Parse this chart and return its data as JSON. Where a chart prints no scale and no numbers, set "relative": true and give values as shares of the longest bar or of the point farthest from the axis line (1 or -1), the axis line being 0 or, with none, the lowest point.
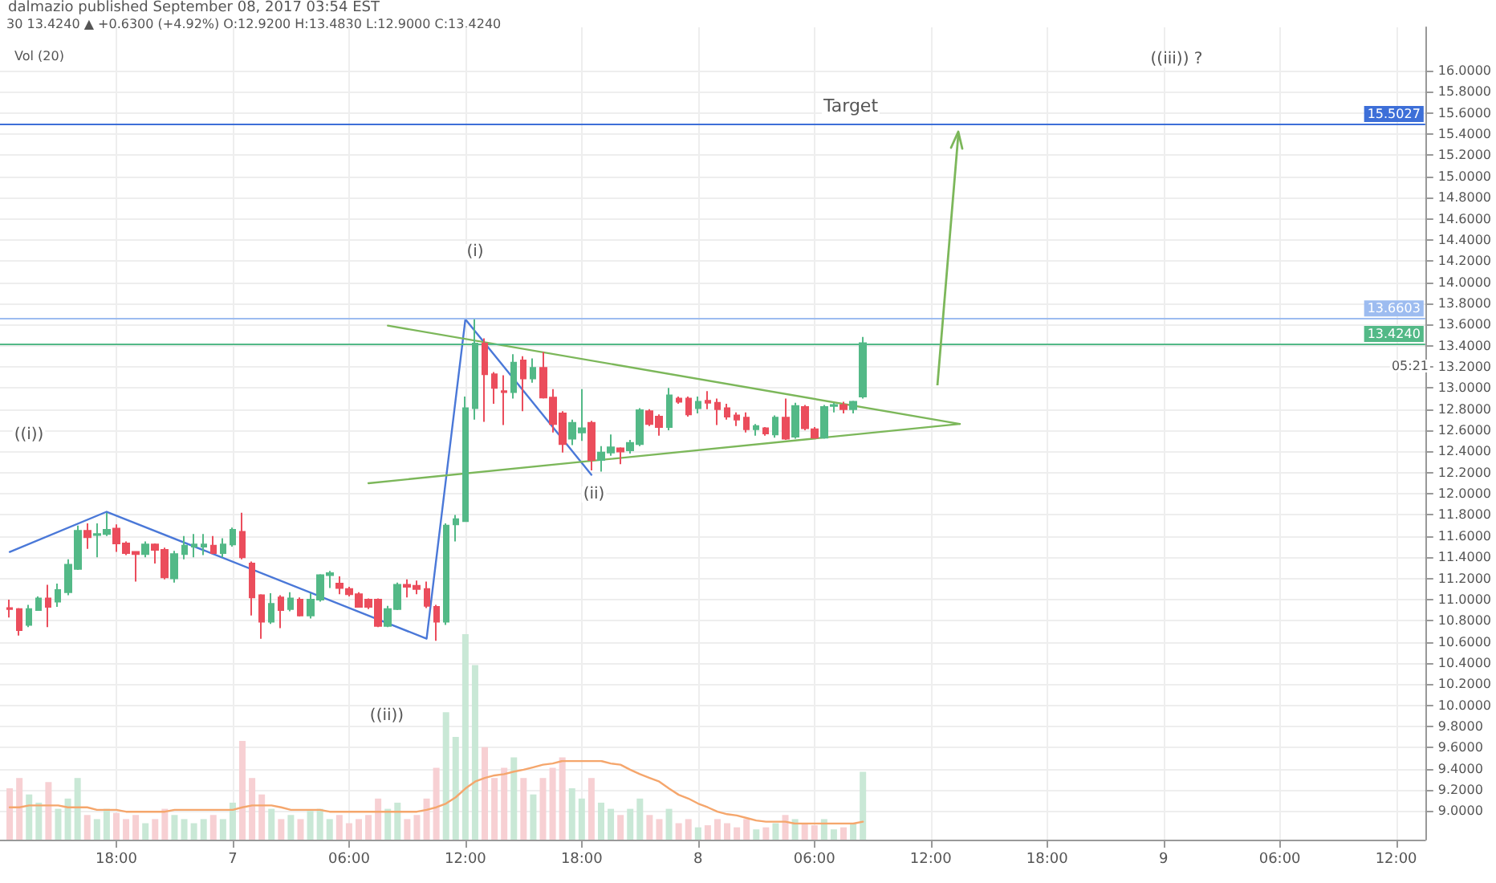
{
  "chart_data": [
    {
      "type": "candlestick",
      "subtitle": "30 13.4240 ▲ +0.6300 (+4.92%) O:12.9200 H:13.4830 L:12.9000 C:13.4240",
      "annotations": [
        "dalmazio published September 08, 2017 03:54 EST",
        "(i)",
        "((i))",
        "(ii)",
        "((ii))",
        "Target",
        "((iii)) ?",
        "05:21"
      ],
      "x": [
        "2017-09-06T12:30",
        "2017-09-06T13:00",
        "2017-09-06T13:30",
        "2017-09-06T14:00",
        "2017-09-06T14:30",
        "2017-09-06T15:00",
        "2017-09-06T15:30",
        "2017-09-06T16:00",
        "2017-09-06T16:30",
        "2017-09-06T17:00",
        "2017-09-06T17:30",
        "2017-09-06T18:00",
        "2017-09-06T18:30",
        "2017-09-06T19:00",
        "2017-09-06T19:30",
        "2017-09-06T20:00",
        "2017-09-06T20:30",
        "2017-09-06T21:00",
        "2017-09-06T21:30",
        "2017-09-06T22:00",
        "2017-09-06T22:30",
        "2017-09-06T23:00",
        "2017-09-06T23:30",
        "2017-09-07T00:00",
        "2017-09-07T00:30",
        "2017-09-07T01:00",
        "2017-09-07T01:30",
        "2017-09-07T02:00",
        "2017-09-07T02:30",
        "2017-09-07T03:00",
        "2017-09-07T03:30",
        "2017-09-07T04:00",
        "2017-09-07T04:30",
        "2017-09-07T05:00",
        "2017-09-07T05:30",
        "2017-09-07T06:00",
        "2017-09-07T06:30",
        "2017-09-07T07:00",
        "2017-09-07T07:30",
        "2017-09-07T08:00",
        "2017-09-07T08:30",
        "2017-09-07T09:00",
        "2017-09-07T09:30",
        "2017-09-07T10:00",
        "2017-09-07T10:30",
        "2017-09-07T11:00",
        "2017-09-07T11:30",
        "2017-09-07T12:00",
        "2017-09-07T12:30",
        "2017-09-07T13:00",
        "2017-09-07T13:30",
        "2017-09-07T14:00",
        "2017-09-07T14:30",
        "2017-09-07T15:00",
        "2017-09-07T15:30",
        "2017-09-07T16:00",
        "2017-09-07T16:30",
        "2017-09-07T17:00",
        "2017-09-07T17:30",
        "2017-09-07T18:00",
        "2017-09-07T18:30",
        "2017-09-07T19:00",
        "2017-09-07T19:30",
        "2017-09-07T20:00",
        "2017-09-07T20:30",
        "2017-09-07T21:00",
        "2017-09-07T21:30",
        "2017-09-07T22:00",
        "2017-09-07T22:30",
        "2017-09-07T23:00",
        "2017-09-07T23:30",
        "2017-09-08T00:00",
        "2017-09-08T00:30",
        "2017-09-08T01:00",
        "2017-09-08T01:30",
        "2017-09-08T02:00",
        "2017-09-08T02:30",
        "2017-09-08T03:00",
        "2017-09-08T03:30",
        "2017-09-08T04:00",
        "2017-09-08T04:30",
        "2017-09-08T05:00",
        "2017-09-08T05:30",
        "2017-09-08T06:00",
        "2017-09-08T06:30",
        "2017-09-08T07:00",
        "2017-09-08T07:30",
        "2017-09-08T08:00",
        "2017-09-08T08:30"
      ],
      "ohlc": [
        [
          10.92,
          11.0,
          10.83,
          10.91
        ],
        [
          10.91,
          10.92,
          10.66,
          10.71
        ],
        [
          10.76,
          10.95,
          10.74,
          10.91
        ],
        [
          10.9,
          11.03,
          10.9,
          11.01
        ],
        [
          11.01,
          11.14,
          10.74,
          10.93
        ],
        [
          10.98,
          11.15,
          10.93,
          11.09
        ],
        [
          11.07,
          11.38,
          11.04,
          11.33
        ],
        [
          11.29,
          11.7,
          11.28,
          11.65
        ],
        [
          11.65,
          11.72,
          11.48,
          11.59
        ],
        [
          11.61,
          11.72,
          11.4,
          11.62
        ],
        [
          11.62,
          11.82,
          11.6,
          11.66
        ],
        [
          11.67,
          11.71,
          11.45,
          11.53
        ],
        [
          11.53,
          11.55,
          11.42,
          11.44
        ],
        [
          11.45,
          11.45,
          11.17,
          11.43
        ],
        [
          11.43,
          11.55,
          11.4,
          11.52
        ],
        [
          11.52,
          11.53,
          11.34,
          11.47
        ],
        [
          11.47,
          11.49,
          11.19,
          11.21
        ],
        [
          11.2,
          11.46,
          11.16,
          11.43
        ],
        [
          11.43,
          11.6,
          11.38,
          11.51
        ],
        [
          11.5,
          11.62,
          11.4,
          11.52
        ],
        [
          11.5,
          11.62,
          11.42,
          11.52
        ],
        [
          11.51,
          11.6,
          11.43,
          11.44
        ],
        [
          11.44,
          11.58,
          11.4,
          11.52
        ],
        [
          11.52,
          11.68,
          11.5,
          11.66
        ],
        [
          11.64,
          11.82,
          11.38,
          11.4
        ],
        [
          11.34,
          11.36,
          10.85,
          11.02
        ],
        [
          11.04,
          11.05,
          10.63,
          10.79
        ],
        [
          10.79,
          11.06,
          10.77,
          10.96
        ],
        [
          11.02,
          11.04,
          10.73,
          10.9
        ],
        [
          10.91,
          11.07,
          10.89,
          11.01
        ],
        [
          11.0,
          11.02,
          10.84,
          10.85
        ],
        [
          10.85,
          11.06,
          10.82,
          11.0
        ],
        [
          11.0,
          11.24,
          10.98,
          11.23
        ],
        [
          11.23,
          11.27,
          11.11,
          11.25
        ],
        [
          11.15,
          11.22,
          11.05,
          11.11
        ],
        [
          11.1,
          11.12,
          11.03,
          11.05
        ],
        [
          11.05,
          11.07,
          10.93,
          10.93
        ],
        [
          11.0,
          11.01,
          10.91,
          10.93
        ],
        [
          11.0,
          11.01,
          10.74,
          10.75
        ],
        [
          10.75,
          10.94,
          10.74,
          10.91
        ],
        [
          10.91,
          11.16,
          10.9,
          11.14
        ],
        [
          11.14,
          11.19,
          11.02,
          11.12
        ],
        [
          11.13,
          11.18,
          11.05,
          11.1
        ],
        [
          11.1,
          11.17,
          10.92,
          10.94
        ],
        [
          10.93,
          10.95,
          10.61,
          10.79
        ],
        [
          10.79,
          11.72,
          10.76,
          11.7
        ],
        [
          11.71,
          11.8,
          11.55,
          11.76
        ],
        [
          11.74,
          12.92,
          11.74,
          12.81
        ],
        [
          12.81,
          13.65,
          12.7,
          13.42
        ],
        [
          13.42,
          13.47,
          12.68,
          13.13
        ],
        [
          13.13,
          13.15,
          12.85,
          13.0
        ],
        [
          12.97,
          13.12,
          12.65,
          12.96
        ],
        [
          12.96,
          13.32,
          12.9,
          13.24
        ],
        [
          13.26,
          13.3,
          12.78,
          13.09
        ],
        [
          13.09,
          13.28,
          13.05,
          13.19
        ],
        [
          13.19,
          13.34,
          12.9,
          12.91
        ],
        [
          12.91,
          12.99,
          12.58,
          12.66
        ],
        [
          12.76,
          12.78,
          12.39,
          12.47
        ],
        [
          12.52,
          12.7,
          12.46,
          12.67
        ],
        [
          12.58,
          12.99,
          12.5,
          12.62
        ],
        [
          12.67,
          12.69,
          12.22,
          12.32
        ],
        [
          12.32,
          12.45,
          12.21,
          12.39
        ],
        [
          12.39,
          12.56,
          12.36,
          12.44
        ],
        [
          12.43,
          12.44,
          12.28,
          12.4
        ],
        [
          12.41,
          12.51,
          12.38,
          12.48
        ],
        [
          12.47,
          12.81,
          12.45,
          12.79
        ],
        [
          12.78,
          12.8,
          12.64,
          12.66
        ],
        [
          12.73,
          12.75,
          12.55,
          12.63
        ],
        [
          12.63,
          13.0,
          12.6,
          12.93
        ],
        [
          12.9,
          12.92,
          12.85,
          12.87
        ],
        [
          12.9,
          12.92,
          12.73,
          12.75
        ],
        [
          12.81,
          12.92,
          12.76,
          12.87
        ],
        [
          12.88,
          12.97,
          12.8,
          12.86
        ],
        [
          12.86,
          12.9,
          12.65,
          12.8
        ],
        [
          12.81,
          12.85,
          12.7,
          12.73
        ],
        [
          12.74,
          12.77,
          12.64,
          12.7
        ],
        [
          12.72,
          12.77,
          12.58,
          12.61
        ],
        [
          12.61,
          12.66,
          12.55,
          12.64
        ],
        [
          12.62,
          12.63,
          12.55,
          12.57
        ],
        [
          12.56,
          12.74,
          12.53,
          12.72
        ],
        [
          12.72,
          12.9,
          12.51,
          12.52
        ],
        [
          12.54,
          12.86,
          12.52,
          12.83
        ],
        [
          12.82,
          12.84,
          12.6,
          12.62
        ],
        [
          12.61,
          12.63,
          12.52,
          12.53
        ],
        [
          12.53,
          12.84,
          12.52,
          12.82
        ],
        [
          12.83,
          12.86,
          12.77,
          12.84
        ],
        [
          12.84,
          12.87,
          12.76,
          12.8
        ],
        [
          12.8,
          12.88,
          12.76,
          12.87
        ],
        [
          12.92,
          13.483,
          12.9,
          13.424
        ]
      ],
      "colors": [
        "#eb4d5c",
        "#eb4d5c",
        "#53b987",
        "#53b987",
        "#eb4d5c",
        "#53b987",
        "#53b987",
        "#53b987",
        "#eb4d5c",
        "#53b987",
        "#53b987",
        "#eb4d5c",
        "#eb4d5c",
        "#eb4d5c",
        "#53b987",
        "#eb4d5c",
        "#eb4d5c",
        "#53b987",
        "#53b987",
        "#53b987",
        "#53b987",
        "#eb4d5c",
        "#53b987",
        "#53b987",
        "#eb4d5c",
        "#eb4d5c",
        "#eb4d5c",
        "#53b987",
        "#eb4d5c",
        "#53b987",
        "#eb4d5c",
        "#53b987",
        "#53b987",
        "#53b987",
        "#eb4d5c",
        "#eb4d5c",
        "#eb4d5c",
        "#eb4d5c",
        "#eb4d5c",
        "#53b987",
        "#53b987",
        "#eb4d5c",
        "#eb4d5c",
        "#eb4d5c",
        "#eb4d5c",
        "#53b987",
        "#53b987",
        "#53b987",
        "#53b987",
        "#eb4d5c",
        "#eb4d5c",
        "#eb4d5c",
        "#53b987",
        "#eb4d5c",
        "#53b987",
        "#eb4d5c",
        "#eb4d5c",
        "#eb4d5c",
        "#53b987",
        "#53b987",
        "#eb4d5c",
        "#53b987",
        "#53b987",
        "#eb4d5c",
        "#53b987",
        "#53b987",
        "#eb4d5c",
        "#eb4d5c",
        "#53b987",
        "#eb4d5c",
        "#eb4d5c",
        "#53b987",
        "#eb4d5c",
        "#eb4d5c",
        "#eb4d5c",
        "#eb4d5c",
        "#eb4d5c",
        "#53b987",
        "#eb4d5c",
        "#53b987",
        "#eb4d5c",
        "#53b987",
        "#eb4d5c",
        "#eb4d5c",
        "#53b987",
        "#53b987",
        "#eb4d5c",
        "#53b987",
        "#53b987"
      ],
      "series": [
        {
          "type": "line",
          "color": "#4a78d8",
          "x": [
            "2017-09-06T12:30",
            "2017-09-06T17:30",
            "2017-09-07T10:00",
            "2017-09-07T12:00",
            "2017-09-07T18:30"
          ],
          "values": [
            11.45,
            11.83,
            10.63,
            13.65,
            12.18
          ]
        },
        {
          "type": "line",
          "color": "#7cb75a",
          "x": [
            "2017-09-07T08:00",
            "2017-09-08T13:30"
          ],
          "values": [
            13.59,
            12.66
          ]
        },
        {
          "type": "line",
          "color": "#7cb75a",
          "x": [
            "2017-09-07T07:00",
            "2017-09-08T13:30"
          ],
          "values": [
            12.1,
            12.66
          ]
        }
      ],
      "ref_lines": [
        {
          "axis": "y",
          "value": 15.5027,
          "label": "15.5027",
          "color": "#3d6fd8"
        },
        {
          "axis": "y",
          "value": 13.6603,
          "label": "13.6603",
          "color": "#9dbcf0"
        },
        {
          "axis": "y",
          "value": 13.424,
          "label": "13.4240",
          "color": "#53b987"
        }
      ],
      "xlim": [
        "2017-09-06T12:00",
        "2017-09-09T13:30"
      ],
      "xticks": [
        {
          "value": "2017-09-06T18:00",
          "label": "18:00"
        },
        {
          "value": "2017-09-07T00:00",
          "label": "7"
        },
        {
          "value": "2017-09-07T06:00",
          "label": "06:00"
        },
        {
          "value": "2017-09-07T12:00",
          "label": "12:00"
        },
        {
          "value": "2017-09-07T18:00",
          "label": "18:00"
        },
        {
          "value": "2017-09-08T00:00",
          "label": "8"
        },
        {
          "value": "2017-09-08T06:00",
          "label": "06:00"
        },
        {
          "value": "2017-09-08T12:00",
          "label": "12:00"
        },
        {
          "value": "2017-09-08T18:00",
          "label": "18:00"
        },
        {
          "value": "2017-09-09T00:00",
          "label": "9"
        },
        {
          "value": "2017-09-09T06:00",
          "label": "06:00"
        },
        {
          "value": "2017-09-09T12:00",
          "label": "12:00"
        }
      ],
      "ylim": [
        8.73,
        16.41
      ],
      "yticks": [
        {
          "value": 9,
          "label": "9.0000"
        },
        {
          "value": 9.2,
          "label": "9.2000"
        },
        {
          "value": 9.4,
          "label": "9.4000"
        },
        {
          "value": 9.6,
          "label": "9.6000"
        },
        {
          "value": 9.8,
          "label": "9.8000"
        },
        {
          "value": 10,
          "label": "10.0000"
        },
        {
          "value": 10.2,
          "label": "10.2000"
        },
        {
          "value": 10.4,
          "label": "10.4000"
        },
        {
          "value": 10.6,
          "label": "10.6000"
        },
        {
          "value": 10.8,
          "label": "10.8000"
        },
        {
          "value": 11,
          "label": "11.0000"
        },
        {
          "value": 11.2,
          "label": "11.2000"
        },
        {
          "value": 11.4,
          "label": "11.4000"
        },
        {
          "value": 11.6,
          "label": "11.6000"
        },
        {
          "value": 11.8,
          "label": "11.8000"
        },
        {
          "value": 12,
          "label": "12.0000"
        },
        {
          "value": 12.2,
          "label": "12.2000"
        },
        {
          "value": 12.4,
          "label": "12.4000"
        },
        {
          "value": 12.6,
          "label": "12.6000"
        },
        {
          "value": 12.8,
          "label": "12.8000"
        },
        {
          "value": 13,
          "label": "13.0000"
        },
        {
          "value": 13.2,
          "label": "13.2000"
        },
        {
          "value": 13.4,
          "label": "13.4000"
        },
        {
          "value": 13.6,
          "label": "13.6000"
        },
        {
          "value": 13.8,
          "label": "13.8000"
        },
        {
          "value": 14,
          "label": "14.0000"
        },
        {
          "value": 14.2,
          "label": "14.2000"
        },
        {
          "value": 14.4,
          "label": "14.4000"
        },
        {
          "value": 14.6,
          "label": "14.6000"
        },
        {
          "value": 14.8,
          "label": "14.8000"
        },
        {
          "value": 15,
          "label": "15.0000"
        },
        {
          "value": 15.2,
          "label": "15.2000"
        },
        {
          "value": 15.4,
          "label": "15.4000"
        },
        {
          "value": 15.6,
          "label": "15.6000"
        },
        {
          "value": 15.8,
          "label": "15.8000"
        },
        {
          "value": 16,
          "label": "16.0000"
        }
      ],
      "grid": true,
      "marker": "none"
    },
    {
      "type": "bar",
      "title": "Vol (20)",
      "relative": true,
      "categories": [
        null,
        null,
        null,
        null,
        null,
        null,
        null,
        null,
        null,
        null,
        null,
        null,
        null,
        null,
        null,
        null,
        null,
        null,
        null,
        null,
        null,
        null,
        null,
        null,
        null,
        null,
        null,
        null,
        null,
        null,
        null,
        null,
        null,
        null,
        null,
        null,
        null,
        null,
        null,
        null,
        null,
        null,
        null,
        null,
        null,
        null,
        null,
        null,
        null,
        null,
        null,
        null,
        null,
        null,
        null,
        null,
        null,
        null,
        null,
        null,
        null,
        null,
        null,
        null,
        null,
        null,
        null,
        null,
        null,
        null,
        null,
        null,
        null,
        null,
        null,
        null,
        null,
        null,
        null,
        null,
        null,
        null,
        null,
        null,
        null,
        null,
        null,
        null,
        null
      ],
      "series": [
        {
          "type": "bar",
          "values": [
            0.25,
            0.3,
            0.22,
            0.18,
            0.28,
            0.15,
            0.2,
            0.3,
            0.12,
            0.1,
            0.15,
            0.13,
            0.1,
            0.12,
            0.08,
            0.1,
            0.15,
            0.12,
            0.1,
            0.08,
            0.1,
            0.12,
            0.1,
            0.18,
            0.48,
            0.3,
            0.22,
            0.15,
            0.1,
            0.12,
            0.1,
            0.14,
            0.15,
            0.1,
            0.12,
            0.08,
            0.1,
            0.12,
            0.2,
            0.15,
            0.18,
            0.1,
            0.12,
            0.2,
            0.35,
            0.62,
            0.5,
            1.0,
            0.85,
            0.45,
            0.3,
            0.35,
            0.4,
            0.3,
            0.22,
            0.3,
            0.35,
            0.4,
            0.25,
            0.2,
            0.3,
            0.18,
            0.15,
            0.12,
            0.15,
            0.2,
            0.12,
            0.1,
            0.15,
            0.08,
            0.1,
            0.06,
            0.07,
            0.1,
            0.08,
            0.06,
            0.1,
            0.05,
            0.06,
            0.08,
            0.12,
            0.1,
            0.08,
            0.07,
            0.1,
            0.05,
            0.06,
            0.08,
            0.33
          ],
          "colors": [
            "#f7d0d3",
            "#f7d0d3",
            "#c9e8d6",
            "#c9e8d6",
            "#f7d0d3",
            "#c9e8d6",
            "#c9e8d6",
            "#c9e8d6",
            "#f7d0d3",
            "#c9e8d6",
            "#c9e8d6",
            "#f7d0d3",
            "#f7d0d3",
            "#f7d0d3",
            "#c9e8d6",
            "#f7d0d3",
            "#f7d0d3",
            "#c9e8d6",
            "#c9e8d6",
            "#c9e8d6",
            "#c9e8d6",
            "#f7d0d3",
            "#c9e8d6",
            "#c9e8d6",
            "#f7d0d3",
            "#f7d0d3",
            "#f7d0d3",
            "#c9e8d6",
            "#f7d0d3",
            "#c9e8d6",
            "#f7d0d3",
            "#c9e8d6",
            "#c9e8d6",
            "#c9e8d6",
            "#f7d0d3",
            "#f7d0d3",
            "#f7d0d3",
            "#f7d0d3",
            "#f7d0d3",
            "#c9e8d6",
            "#c9e8d6",
            "#f7d0d3",
            "#f7d0d3",
            "#f7d0d3",
            "#f7d0d3",
            "#c9e8d6",
            "#c9e8d6",
            "#c9e8d6",
            "#c9e8d6",
            "#f7d0d3",
            "#f7d0d3",
            "#f7d0d3",
            "#c9e8d6",
            "#f7d0d3",
            "#c9e8d6",
            "#f7d0d3",
            "#f7d0d3",
            "#f7d0d3",
            "#c9e8d6",
            "#c9e8d6",
            "#f7d0d3",
            "#c9e8d6",
            "#c9e8d6",
            "#f7d0d3",
            "#c9e8d6",
            "#c9e8d6",
            "#f7d0d3",
            "#f7d0d3",
            "#c9e8d6",
            "#f7d0d3",
            "#f7d0d3",
            "#c9e8d6",
            "#f7d0d3",
            "#f7d0d3",
            "#f7d0d3",
            "#f7d0d3",
            "#f7d0d3",
            "#c9e8d6",
            "#f7d0d3",
            "#c9e8d6",
            "#f7d0d3",
            "#c9e8d6",
            "#f7d0d3",
            "#f7d0d3",
            "#c9e8d6",
            "#c9e8d6",
            "#f7d0d3",
            "#c9e8d6",
            "#c9e8d6"
          ]
        }
      ]
    },
    {
      "type": "line",
      "relative": true,
      "categories": [
        null,
        null,
        null,
        null,
        null,
        null,
        null,
        null,
        null,
        null,
        null,
        null,
        null,
        null,
        null,
        null,
        null,
        null,
        null,
        null,
        null,
        null,
        null,
        null,
        null,
        null,
        null,
        null,
        null,
        null,
        null,
        null,
        null,
        null,
        null,
        null,
        null,
        null,
        null,
        null,
        null,
        null,
        null,
        null,
        null,
        null,
        null,
        null,
        null,
        null,
        null,
        null,
        null,
        null,
        null,
        null,
        null,
        null,
        null,
        null,
        null,
        null,
        null,
        null,
        null,
        null,
        null,
        null,
        null,
        null,
        null,
        null,
        null,
        null,
        null,
        null,
        null,
        null,
        null,
        null,
        null,
        null,
        null,
        null,
        null,
        null,
        null,
        null,
        null
      ],
      "series": [
        {
          "color": "#f5a66c",
          "values": [
            0.26,
            0.26,
            0.29,
            0.29,
            0.29,
            0.29,
            0.26,
            0.26,
            0.26,
            0.22,
            0.22,
            0.22,
            0.19,
            0.19,
            0.19,
            0.19,
            0.19,
            0.22,
            0.22,
            0.22,
            0.22,
            0.22,
            0.22,
            0.22,
            0.26,
            0.29,
            0.29,
            0.29,
            0.26,
            0.22,
            0.22,
            0.22,
            0.22,
            0.19,
            0.19,
            0.19,
            0.19,
            0.19,
            0.19,
            0.19,
            0.19,
            0.19,
            0.19,
            0.22,
            0.26,
            0.32,
            0.42,
            0.56,
            0.67,
            0.73,
            0.77,
            0.79,
            0.83,
            0.86,
            0.9,
            0.94,
            0.96,
            1,
            1,
            1,
            1,
            1,
            0.96,
            0.94,
            0.86,
            0.79,
            0.73,
            0.67,
            0.56,
            0.46,
            0.4,
            0.32,
            0.26,
            0.19,
            0.15,
            0.13,
            0.09,
            0.05,
            0.03,
            0.03,
            0.03,
            0,
            0,
            0,
            0,
            0,
            0,
            0,
            0.03
          ]
        }
      ]
    }
  ]
}
